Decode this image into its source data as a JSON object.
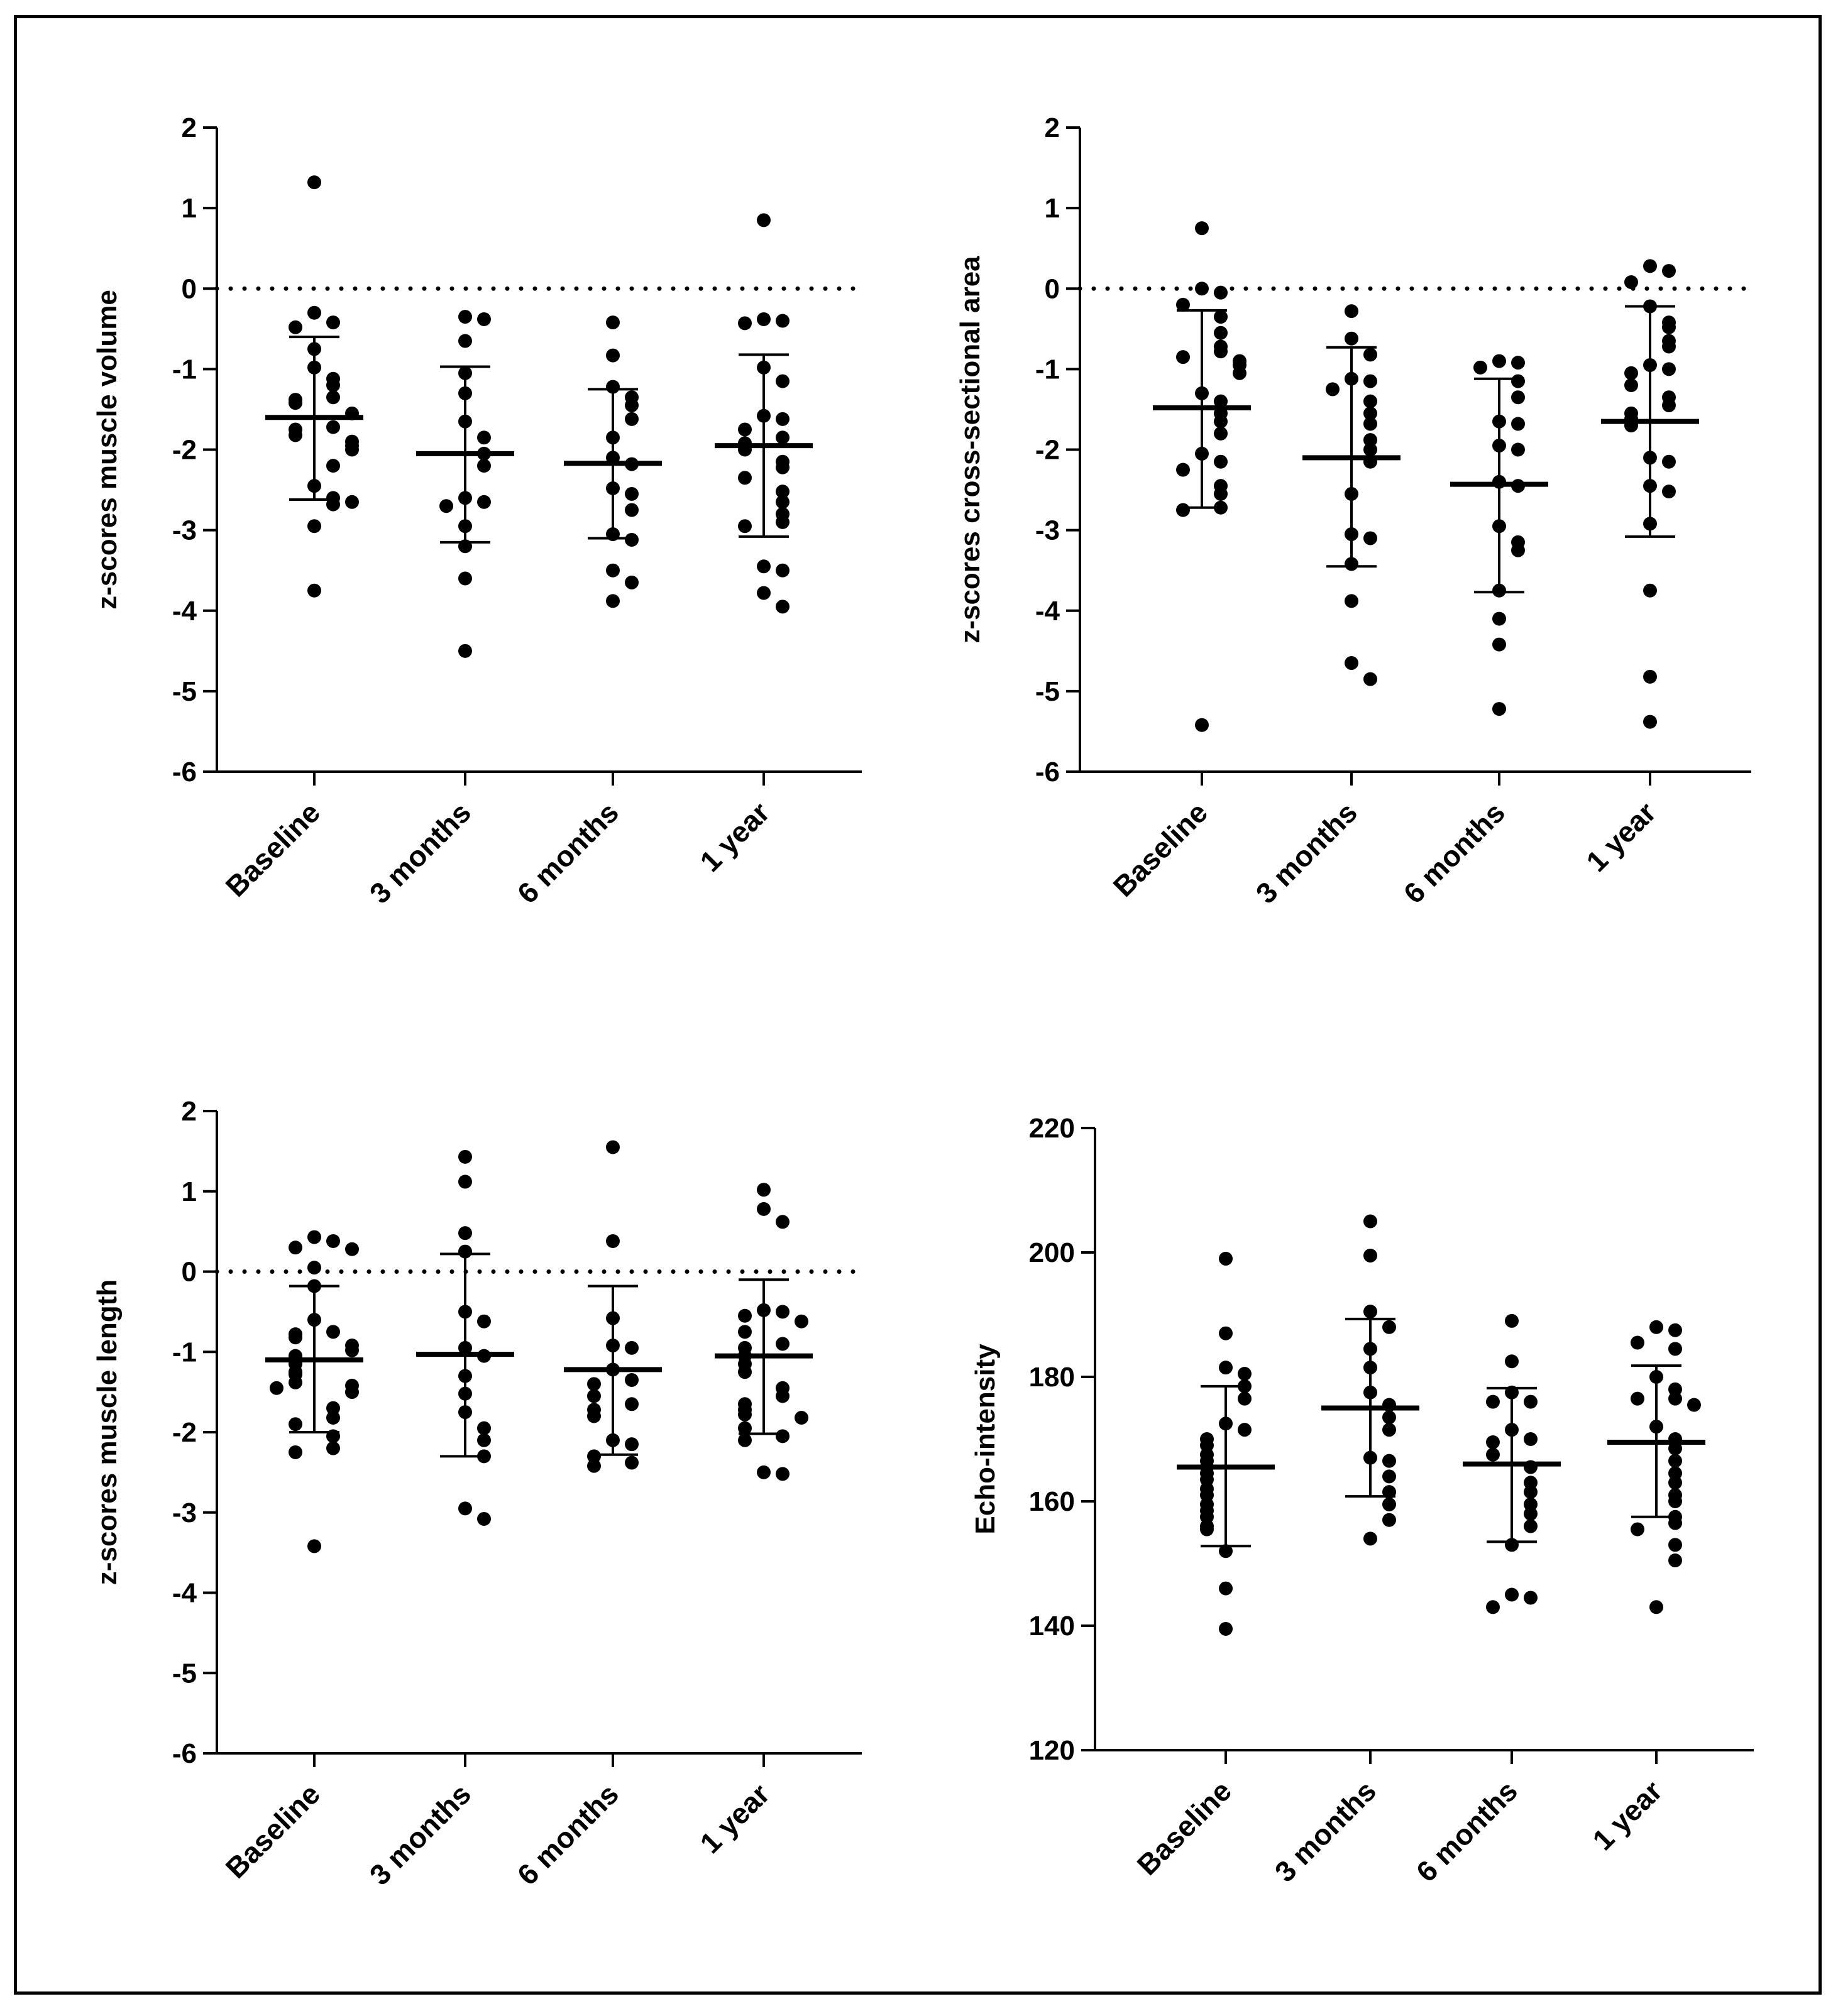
{
  "colors": {
    "ink": "#000000",
    "background": "#ffffff"
  },
  "chart_data": [
    {
      "type": "scatter",
      "title": "",
      "ylabel": "z-scores muscle volume",
      "xlabel": "",
      "categories": [
        "Baseline",
        "3 months",
        "6 months",
        "1 year"
      ],
      "ylim": [
        -6,
        2
      ],
      "yticks": [
        2,
        1,
        0,
        -1,
        -2,
        -3,
        -4,
        -5,
        -6
      ],
      "ytick_labels": [
        "2",
        "1",
        "0",
        "-1",
        "-2",
        "-3",
        "-4",
        "-5",
        "-6"
      ],
      "reference_line": 0,
      "series": [
        {
          "name": "Baseline",
          "mean": -1.6,
          "sd_low": -2.62,
          "sd_high": -0.6,
          "values": [
            1.32,
            -0.3,
            -0.42,
            -0.48,
            -0.75,
            -0.98,
            -1.12,
            -1.2,
            -1.35,
            -1.38,
            -1.42,
            -1.55,
            -1.72,
            -1.75,
            -1.82,
            -1.9,
            -1.95,
            -2.0,
            -2.2,
            -2.45,
            -2.6,
            -2.68,
            -2.65,
            -2.95,
            -3.75
          ]
        },
        {
          "name": "3 months",
          "mean": -2.05,
          "sd_low": -3.15,
          "sd_high": -0.97,
          "values": [
            -0.35,
            -0.38,
            -0.65,
            -1.05,
            -1.3,
            -1.65,
            -1.85,
            -2.05,
            -2.2,
            -2.6,
            -2.65,
            -2.7,
            -2.95,
            -3.2,
            -3.6,
            -4.5
          ]
        },
        {
          "name": "6 months",
          "mean": -2.17,
          "sd_low": -3.1,
          "sd_high": -1.25,
          "values": [
            -0.42,
            -0.83,
            -1.22,
            -1.35,
            -1.45,
            -1.62,
            -1.85,
            -2.1,
            -2.18,
            -2.48,
            -2.55,
            -2.75,
            -3.05,
            -3.12,
            -3.5,
            -3.65,
            -3.88
          ]
        },
        {
          "name": "1 year",
          "mean": -1.95,
          "sd_low": -3.08,
          "sd_high": -0.82,
          "values": [
            0.85,
            -0.38,
            -0.4,
            -0.43,
            -0.98,
            -1.15,
            -1.58,
            -1.62,
            -1.75,
            -1.85,
            -1.92,
            -2.0,
            -2.15,
            -2.22,
            -2.35,
            -2.52,
            -2.65,
            -2.8,
            -2.9,
            -2.95,
            -3.45,
            -3.5,
            -3.78,
            -3.95
          ]
        }
      ]
    },
    {
      "type": "scatter",
      "title": "",
      "ylabel": "z-scores cross-sectional area",
      "xlabel": "",
      "categories": [
        "Baseline",
        "3 months",
        "6 months",
        "1 year"
      ],
      "ylim": [
        -6,
        2
      ],
      "yticks": [
        2,
        1,
        0,
        -1,
        -2,
        -3,
        -4,
        -5,
        -6
      ],
      "ytick_labels": [
        "2",
        "1",
        "0",
        "-1",
        "-2",
        "-3",
        "-4",
        "-5",
        "-6"
      ],
      "reference_line": 0,
      "series": [
        {
          "name": "Baseline",
          "mean": -1.48,
          "sd_low": -2.72,
          "sd_high": -0.27,
          "values": [
            0.75,
            0.0,
            -0.05,
            -0.2,
            -0.35,
            -0.55,
            -0.72,
            -0.78,
            -0.85,
            -0.9,
            -0.95,
            -1.05,
            -1.3,
            -1.4,
            -1.55,
            -1.65,
            -1.8,
            -2.05,
            -2.15,
            -2.25,
            -2.45,
            -2.55,
            -2.72,
            -2.75,
            -5.42
          ]
        },
        {
          "name": "3 months",
          "mean": -2.1,
          "sd_low": -3.45,
          "sd_high": -0.73,
          "values": [
            -0.28,
            -0.62,
            -0.82,
            -1.12,
            -1.15,
            -1.25,
            -1.4,
            -1.55,
            -1.68,
            -1.88,
            -2.0,
            -2.15,
            -2.55,
            -3.05,
            -3.1,
            -3.42,
            -3.88,
            -4.65,
            -4.85
          ]
        },
        {
          "name": "6 months",
          "mean": -2.43,
          "sd_low": -3.77,
          "sd_high": -1.12,
          "values": [
            -0.9,
            -0.92,
            -0.98,
            -1.15,
            -1.35,
            -1.65,
            -1.68,
            -1.95,
            -2.0,
            -2.4,
            -2.45,
            -2.95,
            -3.15,
            -3.25,
            -3.75,
            -4.1,
            -4.42,
            -5.22
          ]
        },
        {
          "name": "1 year",
          "mean": -1.65,
          "sd_low": -3.08,
          "sd_high": -0.22,
          "values": [
            0.28,
            0.22,
            0.08,
            -0.22,
            -0.42,
            -0.48,
            -0.65,
            -0.72,
            -0.95,
            -1.0,
            -1.05,
            -1.2,
            -1.35,
            -1.45,
            -1.55,
            -1.62,
            -1.7,
            -2.1,
            -2.15,
            -2.45,
            -2.52,
            -2.92,
            -3.75,
            -4.82,
            -5.38
          ]
        }
      ]
    },
    {
      "type": "scatter",
      "title": "",
      "ylabel": "z-scores muscle length",
      "xlabel": "",
      "categories": [
        "Baseline",
        "3 months",
        "6 months",
        "1 year"
      ],
      "ylim": [
        -6,
        2
      ],
      "yticks": [
        2,
        1,
        0,
        -1,
        -2,
        -3,
        -4,
        -5,
        -6
      ],
      "ytick_labels": [
        "2",
        "1",
        "0",
        "-1",
        "-2",
        "-3",
        "-4",
        "-5",
        "-6"
      ],
      "reference_line": 0,
      "series": [
        {
          "name": "Baseline",
          "mean": -1.1,
          "sd_low": -2.0,
          "sd_high": -0.18,
          "values": [
            0.43,
            0.38,
            0.3,
            0.28,
            0.05,
            -0.18,
            -0.6,
            -0.75,
            -0.78,
            -0.82,
            -0.92,
            -0.98,
            -1.05,
            -1.15,
            -1.25,
            -1.28,
            -1.38,
            -1.42,
            -1.45,
            -1.5,
            -1.7,
            -1.82,
            -1.9,
            -2.05,
            -2.2,
            -2.25,
            -3.42
          ]
        },
        {
          "name": "3 months",
          "mean": -1.03,
          "sd_low": -2.3,
          "sd_high": 0.22,
          "values": [
            1.43,
            1.12,
            0.48,
            0.25,
            -0.5,
            -0.62,
            -0.95,
            -1.05,
            -1.3,
            -1.52,
            -1.75,
            -1.95,
            -2.1,
            -2.3,
            -2.95,
            -3.08
          ]
        },
        {
          "name": "6 months",
          "mean": -1.22,
          "sd_low": -2.28,
          "sd_high": -0.18,
          "values": [
            1.55,
            0.38,
            -0.58,
            -0.92,
            -0.95,
            -1.22,
            -1.35,
            -1.4,
            -1.55,
            -1.65,
            -1.72,
            -1.8,
            -2.1,
            -2.15,
            -2.3,
            -2.38,
            -2.42
          ]
        },
        {
          "name": "1 year",
          "mean": -1.05,
          "sd_low": -2.02,
          "sd_high": -0.1,
          "values": [
            1.02,
            0.78,
            0.62,
            -0.48,
            -0.5,
            -0.55,
            -0.62,
            -0.75,
            -0.9,
            -0.95,
            -1.05,
            -1.15,
            -1.25,
            -1.45,
            -1.55,
            -1.65,
            -1.72,
            -1.78,
            -1.82,
            -1.95,
            -2.05,
            -2.1,
            -2.5,
            -2.52
          ]
        }
      ]
    },
    {
      "type": "scatter",
      "title": "",
      "ylabel": "Echo-intensity",
      "xlabel": "",
      "categories": [
        "Baseline",
        "3 months",
        "6 months",
        "1 year"
      ],
      "ylim": [
        120,
        220
      ],
      "yticks": [
        220,
        200,
        180,
        160,
        140,
        120
      ],
      "ytick_labels": [
        "220",
        "200",
        "180",
        "160",
        "140",
        "120"
      ],
      "reference_line": null,
      "series": [
        {
          "name": "Baseline",
          "mean": 165.5,
          "sd_low": 152.8,
          "sd_high": 178.5,
          "values": [
            199,
            187,
            181.5,
            180.5,
            178.5,
            176.5,
            172.5,
            171.5,
            170,
            169,
            167.5,
            166.5,
            165.5,
            164.5,
            163.5,
            162,
            161,
            159.5,
            158.5,
            157.5,
            156,
            155.5,
            152,
            146,
            139.5
          ]
        },
        {
          "name": "3 months",
          "mean": 175,
          "sd_low": 160.8,
          "sd_high": 189.3,
          "values": [
            205,
            199.5,
            190.5,
            188,
            184.5,
            181.5,
            177.5,
            175.5,
            173.5,
            171.5,
            167,
            166.5,
            164,
            161.5,
            159.5,
            157,
            154
          ]
        },
        {
          "name": "6 months",
          "mean": 166,
          "sd_low": 153.5,
          "sd_high": 178.2,
          "values": [
            189,
            182.5,
            177.5,
            176,
            176,
            171.5,
            170,
            169.5,
            167.5,
            165.5,
            163,
            161.5,
            159.5,
            158,
            156,
            153,
            145,
            144.5,
            143
          ]
        },
        {
          "name": "1 year",
          "mean": 169.5,
          "sd_low": 157.5,
          "sd_high": 181.8,
          "values": [
            188,
            187.5,
            185.5,
            184.5,
            180,
            178,
            176.5,
            176.5,
            175.5,
            172,
            170,
            168.5,
            166.5,
            164.5,
            163,
            161,
            160,
            157.5,
            156.5,
            155.5,
            153,
            150.5,
            143
          ]
        }
      ]
    }
  ]
}
